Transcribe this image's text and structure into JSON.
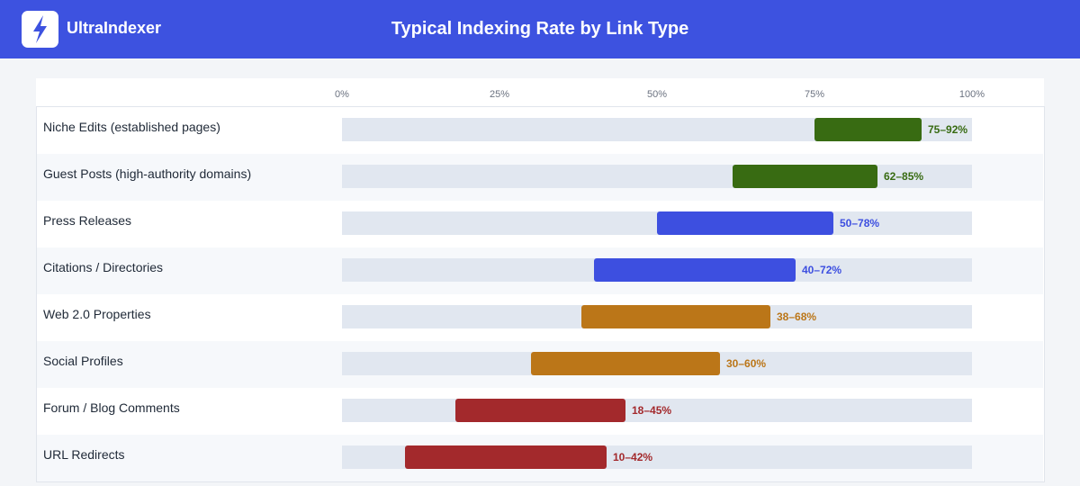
{
  "header": {
    "brand": "UltraIndexer",
    "logo_icon": "lightning-bolt-icon",
    "title": "Typical Indexing Rate by Link Type"
  },
  "colors": {
    "header_bg": "#3d52e0",
    "track": "#e1e7f0",
    "green": "#386b12",
    "blue": "#3d4fe0",
    "orange": "#bb7618",
    "red": "#a3292c"
  },
  "chart_data": {
    "type": "bar",
    "subtype": "horizontal-range",
    "title": "Typical Indexing Rate by Link Type",
    "xlim": [
      0,
      100
    ],
    "x_ticks": [
      "0%",
      "25%",
      "50%",
      "75%",
      "100%"
    ],
    "x_tick_values": [
      0,
      25,
      50,
      75,
      100
    ],
    "grid": false,
    "categories": [
      "Niche Edits (established pages)",
      "Guest Posts (high-authority domains)",
      "Press Releases",
      "Citations / Directories",
      "Web 2.0 Properties",
      "Social Profiles",
      "Forum / Blog Comments",
      "URL Redirects"
    ],
    "ranges": [
      {
        "low": 75,
        "high": 92,
        "label": "75–92%",
        "color": "green"
      },
      {
        "low": 62,
        "high": 85,
        "label": "62–85%",
        "color": "green"
      },
      {
        "low": 50,
        "high": 78,
        "label": "50–78%",
        "color": "blue"
      },
      {
        "low": 40,
        "high": 72,
        "label": "40–72%",
        "color": "blue"
      },
      {
        "low": 38,
        "high": 68,
        "label": "38–68%",
        "color": "orange"
      },
      {
        "low": 30,
        "high": 60,
        "label": "30–60%",
        "color": "orange"
      },
      {
        "low": 18,
        "high": 45,
        "label": "18–45%",
        "color": "red"
      },
      {
        "low": 10,
        "high": 42,
        "label": "10–42%",
        "color": "red"
      }
    ]
  }
}
